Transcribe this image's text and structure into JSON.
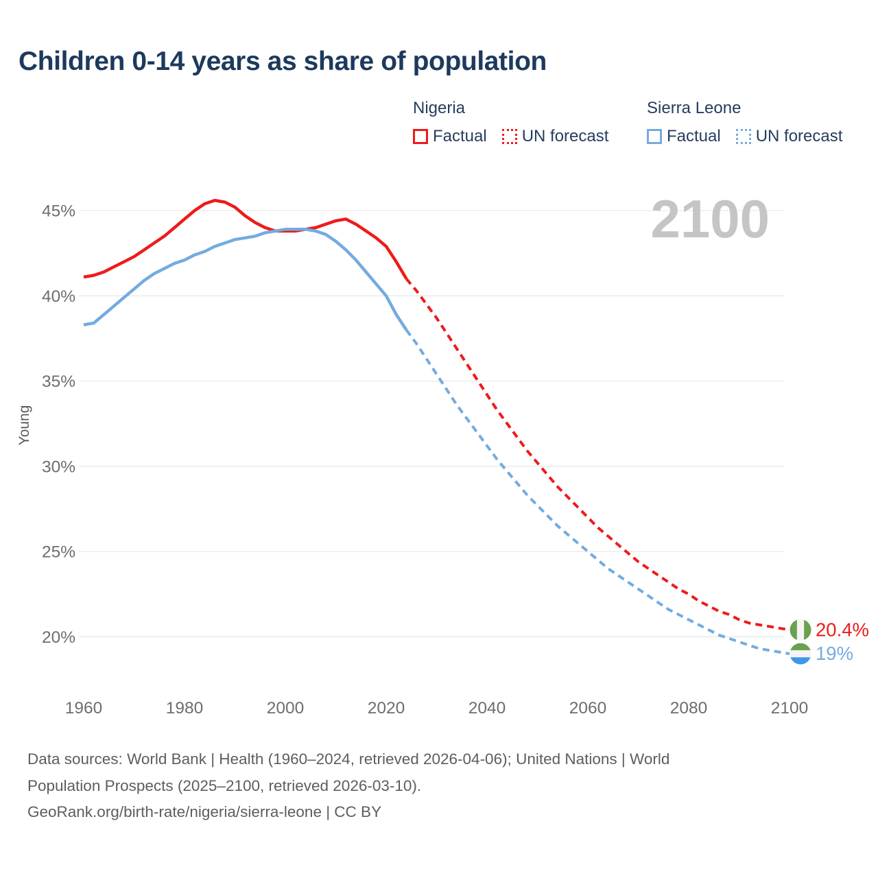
{
  "title": "Children 0-14 years as share of population",
  "watermark": "2100",
  "colors": {
    "nigeria": "#ee1b1b",
    "sierra_leone": "#74abdf",
    "title_text": "#1d3a5c",
    "legend_text": "#263d5d",
    "tick_text": "#6d6d6d",
    "axis_label_text": "#5a5a5a",
    "watermark_text": "#c5c5c5",
    "gridline": "#e9e9e9",
    "footer_text": "#5d5d5d",
    "flag_green": "#69a14f",
    "flag_white": "#f4f4f4",
    "flag_blue": "#3e97ea"
  },
  "legend": {
    "groups": [
      {
        "name": "Nigeria",
        "color": "#ee1b1b",
        "items": [
          {
            "label": "Factual",
            "style": "solid"
          },
          {
            "label": "UN forecast",
            "style": "dotted"
          }
        ]
      },
      {
        "name": "Sierra Leone",
        "color": "#74abdf",
        "items": [
          {
            "label": "Factual",
            "style": "solid"
          },
          {
            "label": "UN forecast",
            "style": "dotted"
          }
        ]
      }
    ]
  },
  "chart_data": {
    "type": "line",
    "title": "Children 0-14 years as share of population",
    "xlabel": "",
    "ylabel": "Young",
    "xlim": [
      1960,
      2100
    ],
    "ylim": [
      17.5,
      47
    ],
    "grid": "horizontal",
    "x_ticks": [
      1960,
      1980,
      2000,
      2020,
      2040,
      2060,
      2080,
      2100
    ],
    "y_ticks": [
      {
        "value": 45,
        "label": "45%"
      },
      {
        "value": 40,
        "label": "40%"
      },
      {
        "value": 35,
        "label": "35%"
      },
      {
        "value": 30,
        "label": "30%"
      },
      {
        "value": 25,
        "label": "25%"
      },
      {
        "value": 20,
        "label": "20%"
      }
    ],
    "series": [
      {
        "name": "Nigeria Factual",
        "color": "#ee1b1b",
        "dash": "solid",
        "points": [
          [
            1960,
            41.1
          ],
          [
            1962,
            41.2
          ],
          [
            1964,
            41.4
          ],
          [
            1966,
            41.7
          ],
          [
            1968,
            42.0
          ],
          [
            1970,
            42.3
          ],
          [
            1972,
            42.7
          ],
          [
            1974,
            43.1
          ],
          [
            1976,
            43.5
          ],
          [
            1978,
            44.0
          ],
          [
            1980,
            44.5
          ],
          [
            1982,
            45.0
          ],
          [
            1984,
            45.4
          ],
          [
            1986,
            45.6
          ],
          [
            1988,
            45.5
          ],
          [
            1990,
            45.2
          ],
          [
            1992,
            44.7
          ],
          [
            1994,
            44.3
          ],
          [
            1996,
            44.0
          ],
          [
            1998,
            43.8
          ],
          [
            2000,
            43.8
          ],
          [
            2002,
            43.8
          ],
          [
            2004,
            43.9
          ],
          [
            2006,
            44.0
          ],
          [
            2008,
            44.2
          ],
          [
            2010,
            44.4
          ],
          [
            2012,
            44.5
          ],
          [
            2014,
            44.2
          ],
          [
            2016,
            43.8
          ],
          [
            2018,
            43.4
          ],
          [
            2020,
            42.9
          ],
          [
            2022,
            42.0
          ],
          [
            2024,
            41.0
          ]
        ]
      },
      {
        "name": "Nigeria UN forecast",
        "color": "#ee1b1b",
        "dash": "dashed",
        "points": [
          [
            2024,
            41.0
          ],
          [
            2026,
            40.3
          ],
          [
            2028,
            39.5
          ],
          [
            2030,
            38.7
          ],
          [
            2032,
            37.8
          ],
          [
            2034,
            36.9
          ],
          [
            2036,
            36.0
          ],
          [
            2038,
            35.1
          ],
          [
            2040,
            34.2
          ],
          [
            2042,
            33.3
          ],
          [
            2044,
            32.5
          ],
          [
            2046,
            31.7
          ],
          [
            2048,
            30.9
          ],
          [
            2050,
            30.2
          ],
          [
            2052,
            29.5
          ],
          [
            2054,
            28.8
          ],
          [
            2056,
            28.2
          ],
          [
            2058,
            27.6
          ],
          [
            2060,
            27.0
          ],
          [
            2062,
            26.4
          ],
          [
            2064,
            25.9
          ],
          [
            2066,
            25.4
          ],
          [
            2068,
            24.9
          ],
          [
            2070,
            24.4
          ],
          [
            2072,
            24.0
          ],
          [
            2074,
            23.6
          ],
          [
            2076,
            23.2
          ],
          [
            2078,
            22.8
          ],
          [
            2080,
            22.5
          ],
          [
            2082,
            22.1
          ],
          [
            2084,
            21.8
          ],
          [
            2086,
            21.5
          ],
          [
            2088,
            21.3
          ],
          [
            2090,
            21.0
          ],
          [
            2092,
            20.8
          ],
          [
            2094,
            20.7
          ],
          [
            2096,
            20.6
          ],
          [
            2098,
            20.5
          ],
          [
            2100,
            20.4
          ]
        ]
      },
      {
        "name": "Sierra Leone Factual",
        "color": "#74abdf",
        "dash": "solid",
        "points": [
          [
            1960,
            38.3
          ],
          [
            1962,
            38.4
          ],
          [
            1964,
            38.9
          ],
          [
            1966,
            39.4
          ],
          [
            1968,
            39.9
          ],
          [
            1970,
            40.4
          ],
          [
            1972,
            40.9
          ],
          [
            1974,
            41.3
          ],
          [
            1976,
            41.6
          ],
          [
            1978,
            41.9
          ],
          [
            1980,
            42.1
          ],
          [
            1982,
            42.4
          ],
          [
            1984,
            42.6
          ],
          [
            1986,
            42.9
          ],
          [
            1988,
            43.1
          ],
          [
            1990,
            43.3
          ],
          [
            1992,
            43.4
          ],
          [
            1994,
            43.5
          ],
          [
            1996,
            43.7
          ],
          [
            1998,
            43.8
          ],
          [
            2000,
            43.9
          ],
          [
            2002,
            43.9
          ],
          [
            2004,
            43.9
          ],
          [
            2006,
            43.8
          ],
          [
            2008,
            43.6
          ],
          [
            2010,
            43.2
          ],
          [
            2012,
            42.7
          ],
          [
            2014,
            42.1
          ],
          [
            2016,
            41.4
          ],
          [
            2018,
            40.7
          ],
          [
            2020,
            40.0
          ],
          [
            2022,
            38.9
          ],
          [
            2024,
            38.0
          ]
        ]
      },
      {
        "name": "Sierra Leone UN forecast",
        "color": "#74abdf",
        "dash": "dashed",
        "points": [
          [
            2024,
            38.0
          ],
          [
            2026,
            37.2
          ],
          [
            2028,
            36.3
          ],
          [
            2030,
            35.4
          ],
          [
            2032,
            34.5
          ],
          [
            2034,
            33.6
          ],
          [
            2036,
            32.8
          ],
          [
            2038,
            32.0
          ],
          [
            2040,
            31.2
          ],
          [
            2042,
            30.4
          ],
          [
            2044,
            29.7
          ],
          [
            2046,
            29.0
          ],
          [
            2048,
            28.3
          ],
          [
            2050,
            27.7
          ],
          [
            2052,
            27.1
          ],
          [
            2054,
            26.5
          ],
          [
            2056,
            26.0
          ],
          [
            2058,
            25.5
          ],
          [
            2060,
            25.0
          ],
          [
            2062,
            24.5
          ],
          [
            2064,
            24.0
          ],
          [
            2066,
            23.6
          ],
          [
            2068,
            23.2
          ],
          [
            2070,
            22.8
          ],
          [
            2072,
            22.4
          ],
          [
            2074,
            22.0
          ],
          [
            2076,
            21.6
          ],
          [
            2078,
            21.3
          ],
          [
            2080,
            21.0
          ],
          [
            2082,
            20.7
          ],
          [
            2084,
            20.4
          ],
          [
            2086,
            20.1
          ],
          [
            2088,
            19.9
          ],
          [
            2090,
            19.7
          ],
          [
            2092,
            19.5
          ],
          [
            2094,
            19.3
          ],
          [
            2096,
            19.2
          ],
          [
            2098,
            19.1
          ],
          [
            2100,
            19.0
          ]
        ]
      }
    ],
    "end_labels": [
      {
        "text": "20.4%",
        "value": 20.4,
        "color": "#ee1b1b",
        "flag": "nigeria-flag",
        "flag_orientation": "vertical",
        "flag_colors": [
          "#69a14f",
          "#f4f4f4",
          "#69a14f"
        ]
      },
      {
        "text": "19%",
        "value": 19,
        "color": "#74abdf",
        "flag": "sierra-leone-flag",
        "flag_orientation": "horizontal",
        "flag_colors": [
          "#69a14f",
          "#f4f4f4",
          "#3e97ea"
        ]
      }
    ],
    "legend_position": "top-right"
  },
  "footer": {
    "lines": [
      "Data sources: World Bank | Health (1960–2024, retrieved 2026-04-06); United Nations | World",
      "Population Prospects (2025–2100, retrieved 2026-03-10).",
      "GeoRank.org/birth-rate/nigeria/sierra-leone | CC BY"
    ]
  }
}
